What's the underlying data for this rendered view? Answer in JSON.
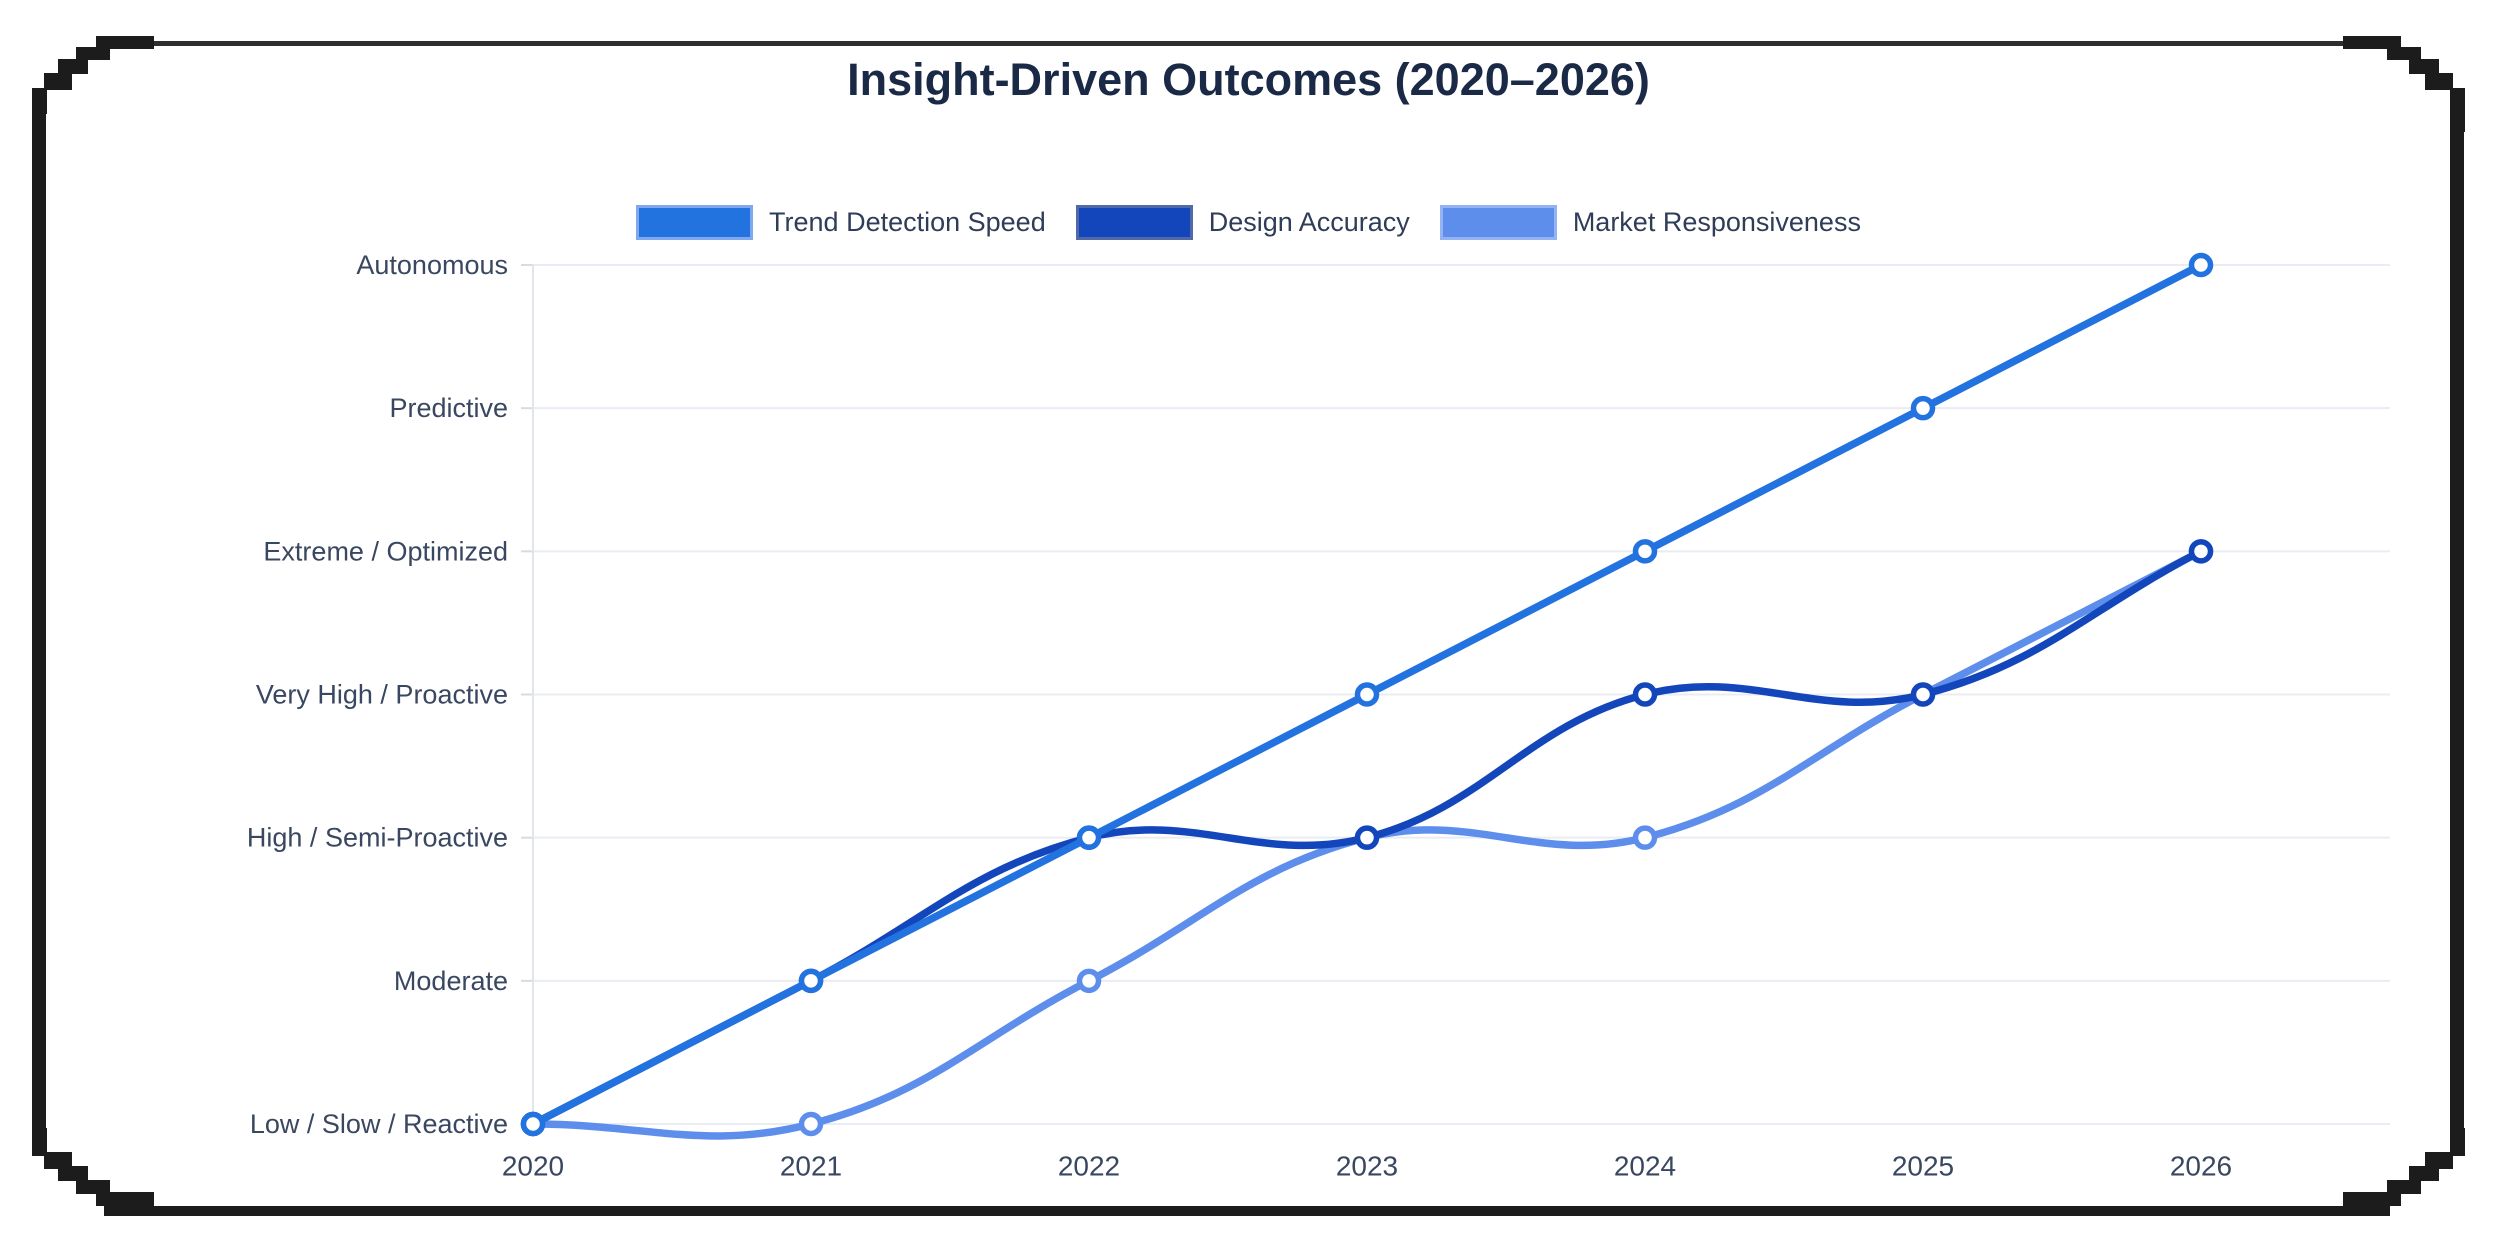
{
  "title": "Insight-Driven Outcomes (2020–2026)",
  "chart_data": {
    "type": "line",
    "title": "Insight-Driven Outcomes (2020–2026)",
    "x_labels": [
      "2020",
      "2021",
      "2022",
      "2023",
      "2024",
      "2025",
      "2026"
    ],
    "y_axis_labels": [
      "Low / Slow / Reactive",
      "Moderate",
      "High / Semi-Proactive",
      "Very High / Proactive",
      "Extreme / Optimized",
      "Predictive",
      "Autonomous"
    ],
    "ylim": [
      0,
      6
    ],
    "xlabel": "",
    "ylabel": "",
    "grid": true,
    "legend_position": "top",
    "curve": "smooth",
    "point_style": "open-circle",
    "series": [
      {
        "name": "Trend Detection Speed",
        "color": "#2272e0",
        "swatch_border": "#7fa8ee",
        "values": [
          0,
          1,
          2,
          3,
          4,
          5,
          6
        ],
        "values_as_labels": [
          "Low / Slow / Reactive",
          "Moderate",
          "High / Semi-Proactive",
          "Very High / Proactive",
          "Extreme / Optimized",
          "Predictive",
          "Autonomous"
        ]
      },
      {
        "name": "Design Accuracy",
        "color": "#1446bb",
        "swatch_border": "#5168a9",
        "values": [
          0,
          1,
          2,
          2,
          3,
          3,
          4
        ],
        "values_as_labels": [
          "Low / Slow / Reactive",
          "Moderate",
          "High / Semi-Proactive",
          "High / Semi-Proactive",
          "Very High / Proactive",
          "Very High / Proactive",
          "Extreme / Optimized"
        ]
      },
      {
        "name": "Market Responsiveness",
        "color": "#5e8eec",
        "swatch_border": "#93b3f4",
        "values": [
          0,
          0,
          1,
          2,
          2,
          3,
          4
        ],
        "values_as_labels": [
          "Low / Slow / Reactive",
          "Low / Slow / Reactive",
          "Moderate",
          "High / Semi-Proactive",
          "High / Semi-Proactive",
          "Very High / Proactive",
          "Extreme / Optimized"
        ]
      }
    ],
    "colors": {
      "title_text": "#1a2945",
      "axis_text": "#3a4760",
      "gridline": "#e9ecf2",
      "axis_line": "#e2e5eb",
      "border_ink": "#1c1c1c"
    }
  }
}
